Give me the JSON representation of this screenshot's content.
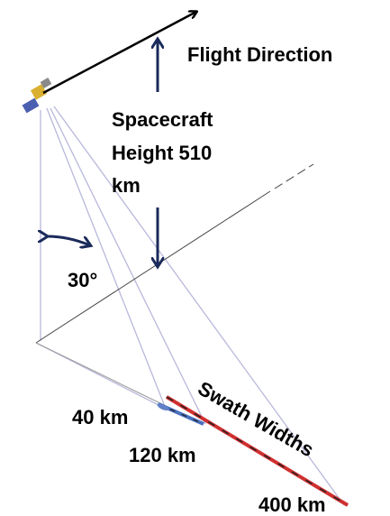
{
  "labels": {
    "flight_direction": "Flight Direction",
    "height": [
      "Spacecraft",
      "Height 510",
      "km"
    ],
    "angle": "30°",
    "swath_title": "Swath Widths",
    "swath_40": "40 km",
    "swath_120": "120 km",
    "swath_400": "400 km"
  }
}
